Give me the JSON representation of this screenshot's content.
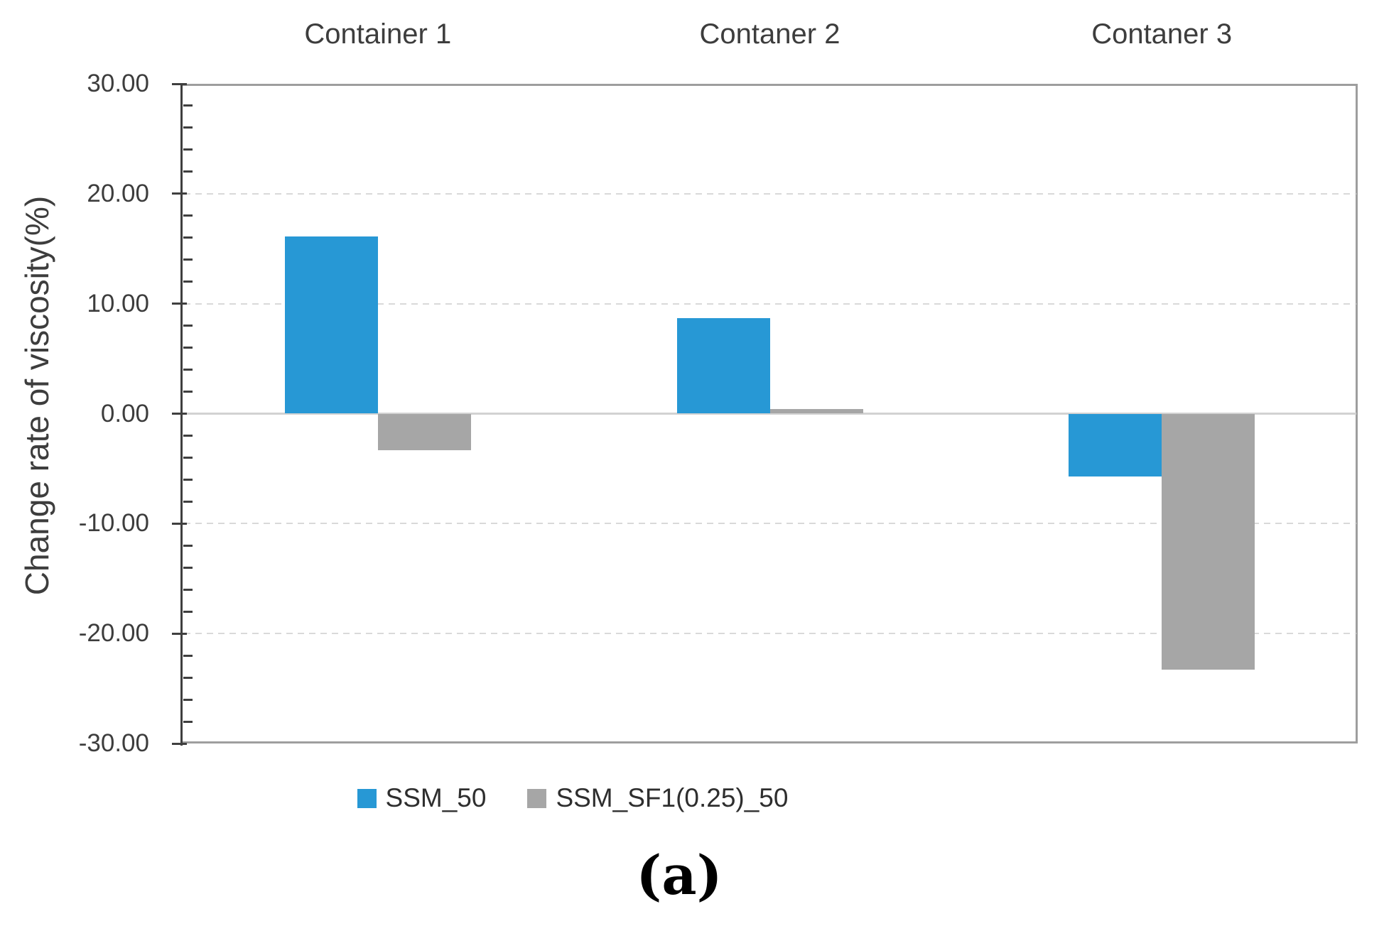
{
  "figure": {
    "caption": "(a)"
  },
  "chart_data": {
    "type": "bar",
    "categories": [
      "Container 1",
      "Contaner 2",
      "Contaner 3"
    ],
    "series": [
      {
        "name": "SSM_50",
        "color": "#2798d5",
        "values": [
          16.1,
          8.7,
          -5.7
        ]
      },
      {
        "name": "SSM_SF1(0.25)_50",
        "color": "#a6a6a6",
        "values": [
          -3.3,
          0.4,
          -23.3
        ]
      }
    ],
    "ylabel": "Change rate of viscosity(%)",
    "xlabel": "",
    "ylim": [
      -30,
      30
    ],
    "yticks": [
      30,
      20,
      10,
      0,
      -10,
      -20,
      -30
    ],
    "ytick_labels": [
      "30.00",
      "20.00",
      "10.00",
      "0.00",
      "-10.00",
      "-20.00",
      "-30.00"
    ],
    "minor_tick_step": 2,
    "grid": true,
    "legend_position": "bottom"
  }
}
